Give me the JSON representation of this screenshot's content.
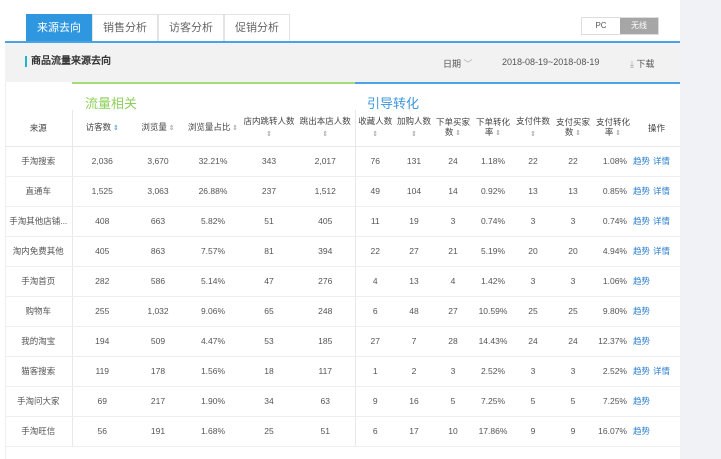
{
  "tabs": [
    "来源去向",
    "销售分析",
    "访客分析",
    "促销分析"
  ],
  "device_toggle": {
    "options": [
      "PC",
      "无线"
    ],
    "selected": "无线"
  },
  "section": {
    "title": "商品流量来源去向",
    "date_label": "日期",
    "date_range": "2018-08-19~2018-08-19",
    "download": "下载"
  },
  "groups": {
    "traffic": "流量相关",
    "conversion": "引导转化"
  },
  "columns": [
    "来源",
    "访客数",
    "浏览量",
    "浏览量占比",
    "店内跳转人数",
    "跳出本店人数",
    "收藏人数",
    "加购人数",
    "下单买家数",
    "下单转化率",
    "支付件数",
    "支付买家数",
    "支付转化率",
    "操作"
  ],
  "actions": {
    "trend": "趋势",
    "detail": "详情"
  },
  "rows": [
    [
      "手淘搜索",
      "2,036",
      "3,670",
      "32.21%",
      "343",
      "2,017",
      "76",
      "131",
      "24",
      "1.18%",
      "22",
      "22",
      "1.08%",
      true
    ],
    [
      "直通车",
      "1,525",
      "3,063",
      "26.88%",
      "237",
      "1,512",
      "49",
      "104",
      "14",
      "0.92%",
      "13",
      "13",
      "0.85%",
      true
    ],
    [
      "手淘其他店铺...",
      "408",
      "663",
      "5.82%",
      "51",
      "405",
      "11",
      "19",
      "3",
      "0.74%",
      "3",
      "3",
      "0.74%",
      true
    ],
    [
      "淘内免费其他",
      "405",
      "863",
      "7.57%",
      "81",
      "394",
      "22",
      "27",
      "21",
      "5.19%",
      "20",
      "20",
      "4.94%",
      true
    ],
    [
      "手淘首页",
      "282",
      "586",
      "5.14%",
      "47",
      "276",
      "4",
      "13",
      "4",
      "1.42%",
      "3",
      "3",
      "1.06%",
      false
    ],
    [
      "购物车",
      "255",
      "1,032",
      "9.06%",
      "65",
      "248",
      "6",
      "48",
      "27",
      "10.59%",
      "25",
      "25",
      "9.80%",
      false
    ],
    [
      "我的淘宝",
      "194",
      "509",
      "4.47%",
      "53",
      "185",
      "27",
      "7",
      "28",
      "14.43%",
      "24",
      "24",
      "12.37%",
      false
    ],
    [
      "猫客搜索",
      "119",
      "178",
      "1.56%",
      "18",
      "117",
      "1",
      "2",
      "3",
      "2.52%",
      "3",
      "3",
      "2.52%",
      true
    ],
    [
      "手淘问大家",
      "69",
      "217",
      "1.90%",
      "34",
      "63",
      "9",
      "16",
      "5",
      "7.25%",
      "5",
      "5",
      "7.25%",
      false
    ],
    [
      "手淘旺信",
      "56",
      "191",
      "1.68%",
      "25",
      "51",
      "6",
      "17",
      "10",
      "17.86%",
      "9",
      "9",
      "16.07%",
      false
    ]
  ]
}
